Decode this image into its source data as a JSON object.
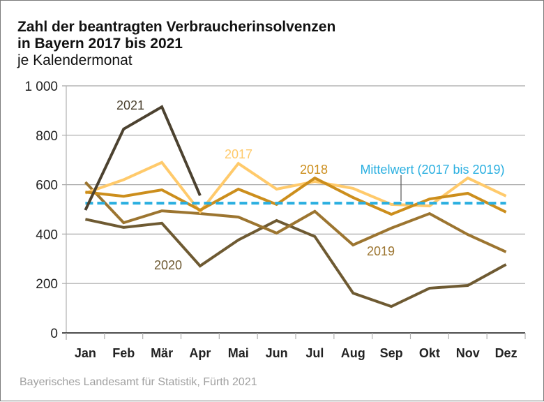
{
  "chart_data": {
    "type": "line",
    "title": "Zahl der beantragten Verbraucherinsolvenzen",
    "title_line2": "in Bayern 2017 bis 2021",
    "subtitle": "je Kalendermonat",
    "xlabel": "",
    "ylabel": "",
    "ylim": [
      0,
      1000
    ],
    "yticks": [
      0,
      200,
      400,
      600,
      800,
      1000
    ],
    "ytick_labels": [
      "0",
      "200",
      "400",
      "600",
      "800",
      "1 000"
    ],
    "grid": true,
    "categories": [
      "Jan",
      "Feb",
      "Mär",
      "Apr",
      "Mai",
      "Jun",
      "Jul",
      "Aug",
      "Sep",
      "Okt",
      "Nov",
      "Dez"
    ],
    "series": [
      {
        "name": "2017",
        "color": "#ffca6b",
        "values": [
          566,
          620,
          690,
          490,
          686,
          582,
          613,
          585,
          520,
          514,
          627,
          554
        ]
      },
      {
        "name": "2018",
        "color": "#cc8e1c",
        "values": [
          570,
          553,
          579,
          497,
          582,
          520,
          627,
          548,
          480,
          542,
          565,
          489
        ]
      },
      {
        "name": "2019",
        "color": "#9c7530",
        "values": [
          610,
          446,
          494,
          483,
          469,
          404,
          492,
          356,
          424,
          483,
          398,
          328
        ]
      },
      {
        "name": "2020",
        "color": "#6e5a32",
        "values": [
          460,
          427,
          444,
          271,
          376,
          455,
          390,
          161,
          107,
          181,
          192,
          277
        ]
      },
      {
        "name": "2021",
        "color": "#4c4230",
        "values": [
          497,
          825,
          915,
          556
        ]
      }
    ],
    "reference_line": {
      "name": "Mittelwert (2017 bis 2019)",
      "value": 525,
      "color": "#2aafe0",
      "style": "dashed"
    },
    "annotations": [
      {
        "text": "2021",
        "series": "2021"
      },
      {
        "text": "2017",
        "series": "2017"
      },
      {
        "text": "2018",
        "series": "2018"
      },
      {
        "text": "2019",
        "series": "2019"
      },
      {
        "text": "2020",
        "series": "2020"
      },
      {
        "text": "Mittelwert (2017 bis 2019)",
        "series": "mean"
      }
    ],
    "legend": "inline labels"
  },
  "source": "Bayerisches Landesamt für Statistik, Fürth 2021"
}
